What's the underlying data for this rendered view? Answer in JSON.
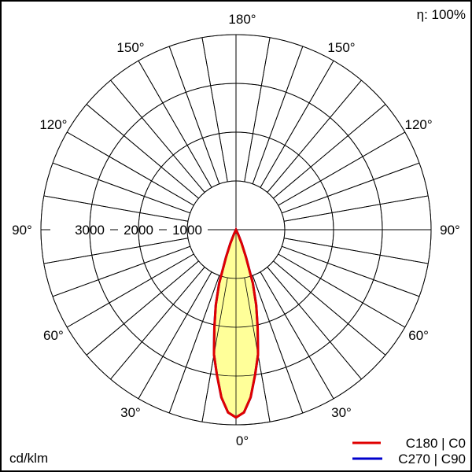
{
  "chart_data": {
    "type": "polar",
    "efficiency_label": "η: 100%",
    "unit_label": "cd/klm",
    "radial_ticks": [
      1000,
      2000,
      3000
    ],
    "radial_max": 4000,
    "angle_labels": [
      "0°",
      "30°",
      "60°",
      "90°",
      "120°",
      "150°",
      "180°"
    ],
    "angle_label_values": [
      0,
      30,
      60,
      90,
      120,
      150,
      180
    ],
    "grid": true,
    "legend_position": "bottom-right",
    "angles_deg": [
      0,
      2.5,
      5,
      7.5,
      10,
      12.5,
      15,
      17.5,
      20,
      22.5,
      25,
      30
    ],
    "series": [
      {
        "name": "C180 | C0",
        "color": "#e00000",
        "values": [
          3850,
          3750,
          3450,
          3000,
          2600,
          2050,
          1600,
          1150,
          600,
          300,
          100,
          0
        ]
      },
      {
        "name": "C270 | C90",
        "color": "#0000cc",
        "values": [
          3850,
          3750,
          3450,
          3000,
          2600,
          2050,
          1600,
          1150,
          600,
          300,
          100,
          0
        ]
      }
    ],
    "fill_color": "#ffff99"
  }
}
